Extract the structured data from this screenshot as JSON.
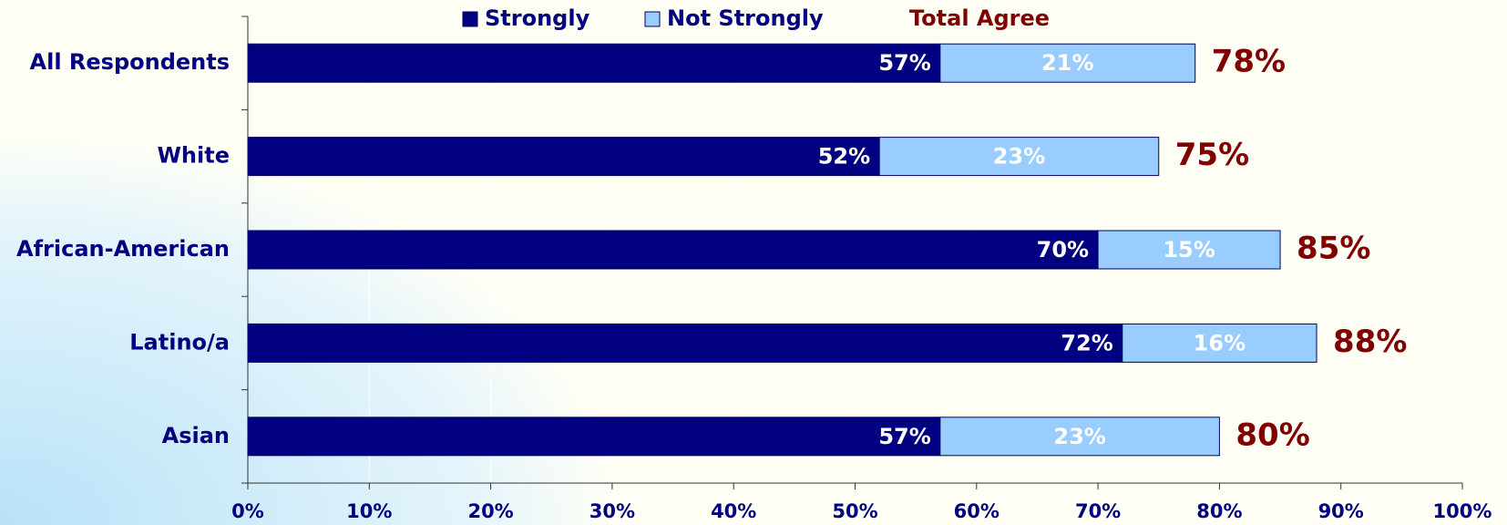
{
  "chart_data": {
    "type": "stacked-bar-horizontal",
    "categories": [
      "All Respondents",
      "White",
      "African-American",
      "Latino/a",
      "Asian"
    ],
    "series": [
      {
        "name": "Strongly",
        "color": "#000080",
        "values": [
          57,
          52,
          70,
          72,
          57
        ],
        "value_labels": [
          "57%",
          "52%",
          "70%",
          "72%",
          "57%"
        ]
      },
      {
        "name": "Not Strongly",
        "color": "#99ccff",
        "values": [
          21,
          23,
          15,
          16,
          23
        ],
        "value_labels": [
          "21%",
          "23%",
          "15%",
          "16%",
          "23%"
        ]
      }
    ],
    "totals": {
      "name": "Total Agree",
      "color": "#800000",
      "values": [
        78,
        75,
        85,
        88,
        80
      ],
      "value_labels": [
        "78%",
        "75%",
        "85%",
        "88%",
        "80%"
      ]
    },
    "xlim": [
      0,
      100
    ],
    "xticks": [
      {
        "value": 0,
        "label": "0%"
      },
      {
        "value": 10,
        "label": "10%"
      },
      {
        "value": 20,
        "label": "20%"
      },
      {
        "value": 30,
        "label": "30%"
      },
      {
        "value": 40,
        "label": "40%"
      },
      {
        "value": 50,
        "label": "50%"
      },
      {
        "value": 60,
        "label": "60%"
      },
      {
        "value": 70,
        "label": "70%"
      },
      {
        "value": 80,
        "label": "80%"
      },
      {
        "value": 90,
        "label": "90%"
      },
      {
        "value": 100,
        "label": "100%"
      }
    ],
    "grid": true
  }
}
